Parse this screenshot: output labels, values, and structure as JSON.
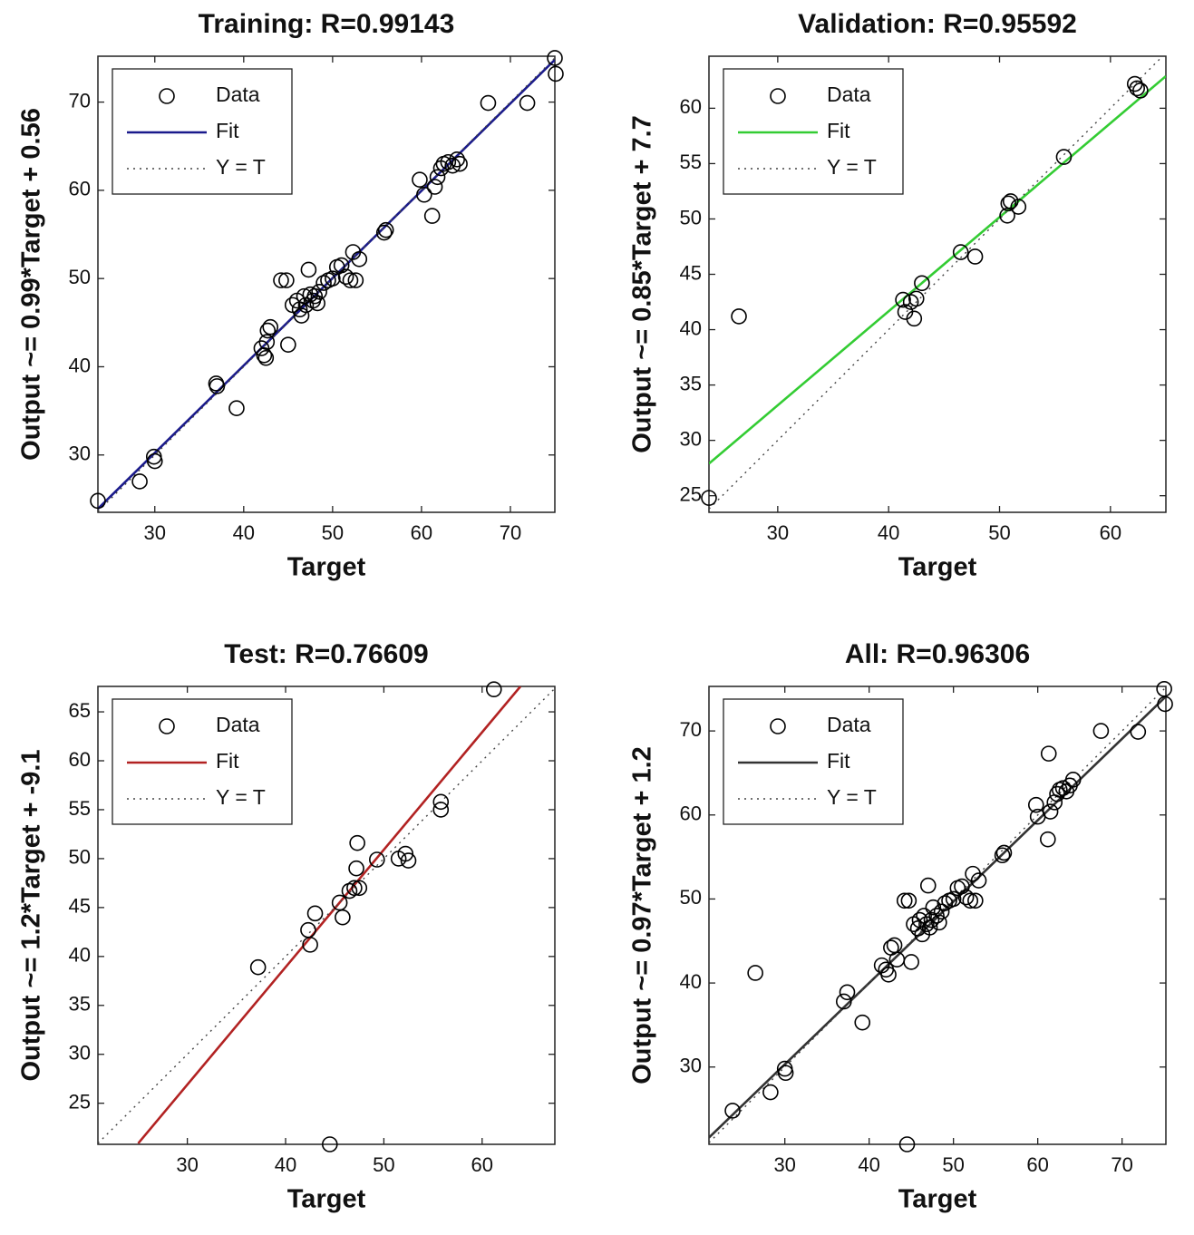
{
  "chart_data": [
    {
      "type": "scatter",
      "title": "Training: R=0.99143",
      "x_label": "Target",
      "y_label": "Output ~= 0.99*Target + 0.56",
      "xlim": [
        23.6,
        75
      ],
      "ylim": [
        23.5,
        75.2
      ],
      "xticks": [
        30,
        40,
        50,
        60,
        70
      ],
      "yticks": [
        30,
        40,
        50,
        60,
        70
      ],
      "legend": "upper-left",
      "series": [
        {
          "name": "Data",
          "color": "#000000",
          "marker": "circle",
          "x": [
            23.6,
            28.3,
            29.9,
            30,
            36.9,
            37,
            39.2,
            42,
            42.3,
            42.5,
            42.7,
            43,
            42.6,
            44.2,
            44.8,
            45,
            45.5,
            46,
            46.3,
            46.5,
            46.8,
            47,
            47.3,
            47.5,
            47.8,
            48,
            48.3,
            48.5,
            49,
            49.5,
            50,
            50.5,
            51,
            51.5,
            52,
            52.3,
            52.6,
            53,
            55.8,
            56,
            59.8,
            60.3,
            61.2,
            61.5,
            61.8,
            62.2,
            62.5,
            63,
            63.5,
            64,
            64.3,
            67.5,
            71.9,
            75,
            75.1
          ],
          "values": [
            24.8,
            27,
            29.8,
            29.3,
            38.1,
            37.8,
            35.3,
            42.1,
            41.3,
            41,
            44.1,
            44.5,
            42.8,
            49.8,
            49.8,
            42.5,
            47,
            47.5,
            46.5,
            45.8,
            48,
            47,
            51,
            48.2,
            47.5,
            48,
            47.2,
            48.5,
            49.5,
            49.8,
            50,
            51.3,
            51.5,
            50.2,
            49.8,
            53,
            49.8,
            52.2,
            55.2,
            55.5,
            61.2,
            59.5,
            57.1,
            60.4,
            61.5,
            62.5,
            63,
            63.2,
            62.8,
            63.5,
            63,
            69.9,
            69.9,
            75,
            73.2
          ]
        },
        {
          "name": "Fit",
          "color": "#1a1a8c",
          "line_style": "solid",
          "x": [
            23.6,
            75
          ],
          "values": [
            23.9,
            74.8
          ]
        },
        {
          "name": "Y = T",
          "color": "#444444",
          "line_style": "dotted",
          "x": [
            23.6,
            75
          ],
          "values": [
            23.6,
            75
          ]
        }
      ]
    },
    {
      "type": "scatter",
      "title": "Validation: R=0.95592",
      "x_label": "Target",
      "y_label": "Output ~= 0.85*Target + 7.7",
      "xlim": [
        23.8,
        65
      ],
      "ylim": [
        23.5,
        64.7
      ],
      "xticks": [
        30,
        40,
        50,
        60
      ],
      "yticks": [
        25,
        30,
        35,
        40,
        45,
        50,
        55,
        60
      ],
      "legend": "upper-left",
      "series": [
        {
          "name": "Data",
          "color": "#000000",
          "marker": "circle",
          "x": [
            23.8,
            26.5,
            41.3,
            41.5,
            42,
            42.3,
            42.5,
            43,
            46.5,
            47.8,
            50.7,
            50.8,
            51,
            51.7,
            55.8,
            62.2,
            62.4,
            62.7
          ],
          "values": [
            24.8,
            41.2,
            42.7,
            41.6,
            42.5,
            41,
            42.8,
            44.2,
            47,
            46.6,
            50.3,
            51.4,
            51.6,
            51.1,
            55.6,
            62.2,
            61.8,
            61.6
          ]
        },
        {
          "name": "Fit",
          "color": "#33cc33",
          "line_style": "solid",
          "x": [
            23.8,
            65
          ],
          "values": [
            27.9,
            62.9
          ]
        },
        {
          "name": "Y = T",
          "color": "#444444",
          "line_style": "dotted",
          "x": [
            23.8,
            64.7
          ],
          "values": [
            23.8,
            64.7
          ]
        }
      ]
    },
    {
      "type": "scatter",
      "title": "Test: R=0.76609",
      "x_label": "Target",
      "y_label": "Output ~= 1.2*Target + -9.1",
      "xlim": [
        20.9,
        67.4
      ],
      "ylim": [
        20.8,
        67.6
      ],
      "xticks": [
        30,
        40,
        50,
        60
      ],
      "yticks": [
        25,
        30,
        35,
        40,
        45,
        50,
        55,
        60,
        65
      ],
      "legend": "upper-left",
      "series": [
        {
          "name": "Data",
          "color": "#000000",
          "marker": "circle",
          "x": [
            37.2,
            42.3,
            42.5,
            43,
            44.5,
            45.5,
            45.8,
            46.5,
            47,
            47.2,
            47.3,
            47.5,
            49.3,
            51.5,
            52.2,
            52.5,
            55.8,
            55.8,
            61.2
          ],
          "values": [
            38.9,
            42.7,
            41.2,
            44.4,
            20.8,
            45.5,
            44,
            46.7,
            47,
            49,
            51.6,
            47,
            49.9,
            50,
            50.5,
            49.8,
            55.8,
            55,
            67.3
          ]
        },
        {
          "name": "Fit",
          "color": "#b22222",
          "line_style": "solid",
          "x": [
            25,
            63.9
          ],
          "values": [
            20.9,
            67.6
          ]
        },
        {
          "name": "Y = T",
          "color": "#444444",
          "line_style": "dotted",
          "x": [
            20.9,
            67.4
          ],
          "values": [
            20.9,
            67.4
          ]
        }
      ]
    },
    {
      "type": "scatter",
      "title": "All: R=0.96306",
      "x_label": "Target",
      "y_label": "Output ~= 0.97*Target + 1.2",
      "xlim": [
        21,
        75.2
      ],
      "ylim": [
        20.8,
        75.3
      ],
      "xticks": [
        30,
        40,
        50,
        60,
        70
      ],
      "yticks": [
        30,
        40,
        50,
        60,
        70
      ],
      "legend": "upper-left",
      "series": [
        {
          "name": "Data",
          "color": "#000000",
          "marker": "circle",
          "x": [
            23.8,
            26.5,
            28.3,
            30,
            30.1,
            37,
            37.4,
            39.2,
            41.5,
            42,
            42.3,
            42.6,
            43,
            43.3,
            44.2,
            44.5,
            44.7,
            45,
            45.3,
            45.8,
            46,
            46.3,
            46.5,
            46.8,
            47,
            47.2,
            47.4,
            47.6,
            48,
            48.3,
            48.6,
            49,
            49.5,
            50,
            50.5,
            51,
            51.5,
            52,
            52.3,
            52.6,
            53,
            55.8,
            56,
            59.8,
            60,
            61.2,
            61.3,
            61.5,
            62,
            62.3,
            62.6,
            63,
            63.4,
            63.8,
            64.2,
            67.5,
            71.9,
            75,
            75.1
          ],
          "values": [
            24.8,
            41.2,
            27,
            29.8,
            29.3,
            37.8,
            38.9,
            35.3,
            42.1,
            41.6,
            41,
            44.2,
            44.5,
            42.8,
            49.8,
            20.8,
            49.8,
            42.5,
            47,
            46.5,
            47.5,
            45.8,
            48,
            47,
            51.6,
            46.6,
            47.5,
            49,
            48,
            47.2,
            48.5,
            49.5,
            49.8,
            50,
            51.3,
            51.5,
            50.2,
            49.8,
            53,
            49.8,
            52.2,
            55.2,
            55.5,
            61.2,
            59.8,
            57.1,
            67.3,
            60.4,
            61.5,
            62.5,
            63,
            63.2,
            62.8,
            63.5,
            64.2,
            70,
            69.9,
            75,
            73.2
          ]
        },
        {
          "name": "Fit",
          "color": "#333333",
          "line_style": "solid",
          "x": [
            21,
            75.2
          ],
          "values": [
            21.6,
            74.1
          ]
        },
        {
          "name": "Y = T",
          "color": "#444444",
          "line_style": "dotted",
          "x": [
            21,
            75.2
          ],
          "values": [
            21,
            75.2
          ]
        }
      ]
    }
  ]
}
